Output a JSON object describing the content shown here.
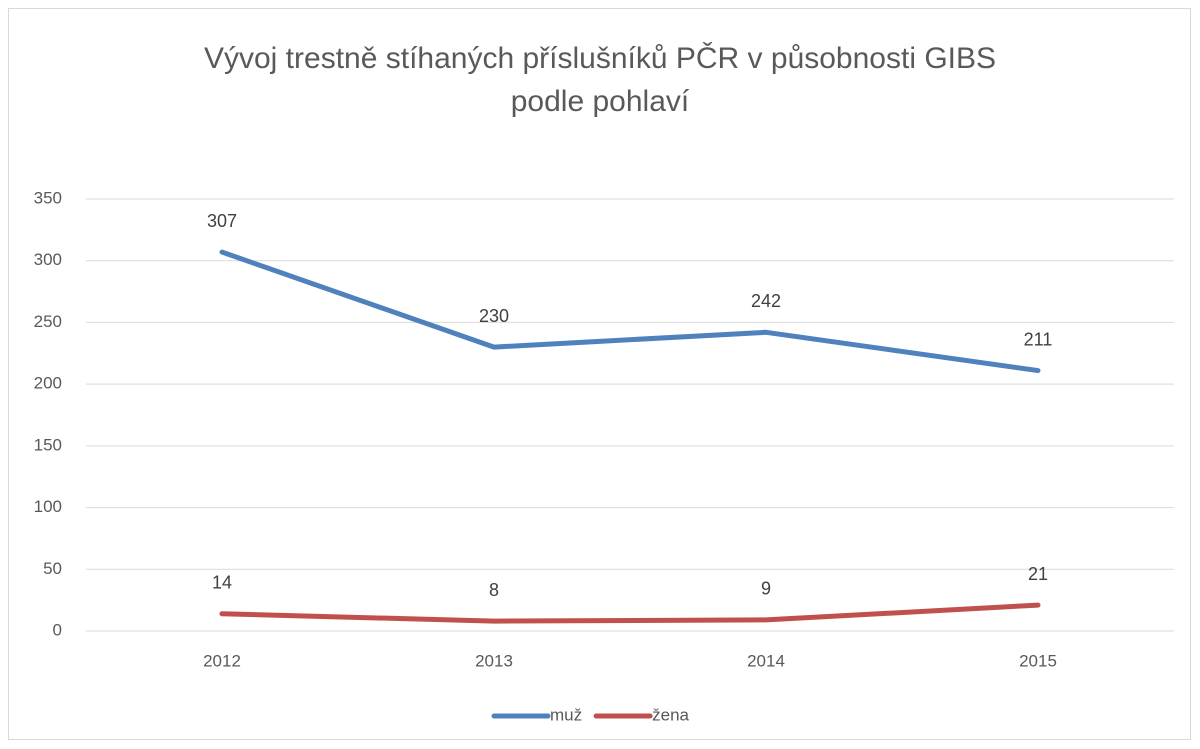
{
  "chart_data": {
    "type": "line",
    "title": [
      "Vývoj trestně stíhaných příslušníků PČR v působnosti GIBS",
      "podle pohlaví"
    ],
    "categories": [
      "2012",
      "2013",
      "2014",
      "2015"
    ],
    "series": [
      {
        "name": "muž",
        "color": "#4f81bd",
        "values": [
          307,
          230,
          242,
          211
        ]
      },
      {
        "name": "žena",
        "color": "#c0504d",
        "values": [
          14,
          8,
          9,
          21
        ]
      }
    ],
    "ylim": [
      0,
      350
    ],
    "yticks": [
      0,
      50,
      100,
      150,
      200,
      250,
      300,
      350
    ],
    "grid": true,
    "legend": "bottom"
  }
}
